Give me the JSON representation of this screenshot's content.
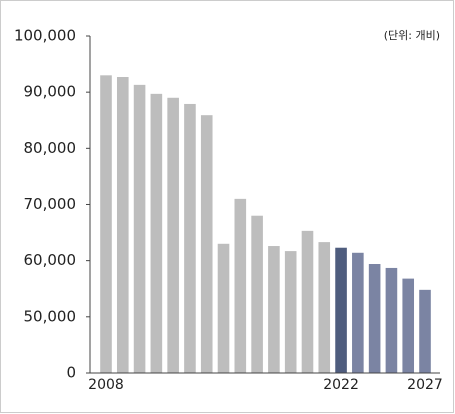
{
  "chart_data": {
    "type": "bar",
    "annotation": "(단위: 개비)",
    "categories": [
      "2008",
      null,
      null,
      null,
      null,
      null,
      null,
      null,
      null,
      null,
      null,
      null,
      null,
      null,
      "2022",
      null,
      null,
      null,
      null,
      "2027"
    ],
    "values": [
      93000,
      92700,
      91300,
      89700,
      89000,
      87900,
      85900,
      63000,
      71000,
      68000,
      62600,
      61700,
      65300,
      63300,
      62300,
      61400,
      59400,
      58700,
      56800,
      54800
    ],
    "colors": [
      "#bdbdbd",
      "#bdbdbd",
      "#bdbdbd",
      "#bdbdbd",
      "#bdbdbd",
      "#bdbdbd",
      "#bdbdbd",
      "#bdbdbd",
      "#bdbdbd",
      "#bdbdbd",
      "#bdbdbd",
      "#bdbdbd",
      "#bdbdbd",
      "#bdbdbd",
      "#4f5d7e",
      "#7b84a3",
      "#7b84a3",
      "#7b84a3",
      "#7b84a3",
      "#7b84a3"
    ],
    "ylim": [
      0,
      100000
    ],
    "axis_break": [
      0,
      50000
    ],
    "yticks": [
      {
        "value": 0,
        "label": "0"
      },
      {
        "value": 50000,
        "label": "50,000"
      },
      {
        "value": 60000,
        "label": "60,000"
      },
      {
        "value": 70000,
        "label": "70,000"
      },
      {
        "value": 80000,
        "label": "80,000"
      },
      {
        "value": 90000,
        "label": "90,000"
      },
      {
        "value": 100000,
        "label": "100,000"
      }
    ]
  }
}
